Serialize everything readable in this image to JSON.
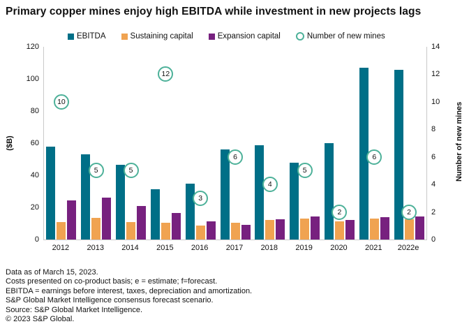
{
  "title": "Primary copper mines enjoy high EBITDA while investment in new projects lags",
  "legend": {
    "items": [
      {
        "label": "EBITDA",
        "color": "#006F87",
        "shape": "square"
      },
      {
        "label": "Sustaining capital",
        "color": "#F0A351",
        "shape": "square"
      },
      {
        "label": "Expansion capital",
        "color": "#77217F",
        "shape": "square"
      },
      {
        "label": "Number of new mines",
        "color": "#4DB199",
        "shape": "circle"
      }
    ]
  },
  "chart_data": {
    "type": "bar",
    "categories": [
      "2012",
      "2013",
      "2014",
      "2015",
      "2016",
      "2017",
      "2018",
      "2019",
      "2020",
      "2021",
      "2022e"
    ],
    "series": [
      {
        "name": "EBITDA",
        "color": "#006F87",
        "axis": "left",
        "values": [
          58,
          53,
          46.5,
          31.5,
          35,
          56,
          58.5,
          48,
          60,
          107,
          105.5
        ]
      },
      {
        "name": "Sustaining capital",
        "color": "#F0A351",
        "axis": "left",
        "values": [
          11,
          13.5,
          11,
          10.5,
          8.5,
          10.5,
          12,
          13,
          11.5,
          13,
          12.5
        ]
      },
      {
        "name": "Expansion capital",
        "color": "#77217F",
        "axis": "left",
        "values": [
          24.5,
          26,
          21,
          16.5,
          11.5,
          9,
          12.5,
          14.5,
          12,
          14,
          14.5
        ]
      }
    ],
    "marker_series": {
      "name": "Number of new mines",
      "color": "#4DB199",
      "axis": "right",
      "marker": "open-circle",
      "values": [
        10,
        5,
        5,
        12,
        3,
        6,
        4,
        5,
        2,
        6,
        2
      ]
    },
    "left_axis": {
      "title": "($B)",
      "min": 0,
      "max": 120,
      "ticks": [
        0,
        20,
        40,
        60,
        80,
        100,
        120
      ]
    },
    "right_axis": {
      "title": "Number of new mines",
      "min": 0,
      "max": 14,
      "ticks": [
        0,
        2,
        4,
        6,
        8,
        10,
        12,
        14
      ]
    },
    "grid": false,
    "legend_position": "top"
  },
  "footnotes": [
    "Data as of March 15, 2023.",
    "Costs presented on co-product basis; e = estimate; f=forecast.",
    "EBITDA = earnings before interest, taxes, depreciation and amortization.",
    "S&P Global Market Intelligence consensus forecast scenario.",
    "Source: S&P Global Market Intelligence.",
    "© 2023 S&P Global."
  ]
}
